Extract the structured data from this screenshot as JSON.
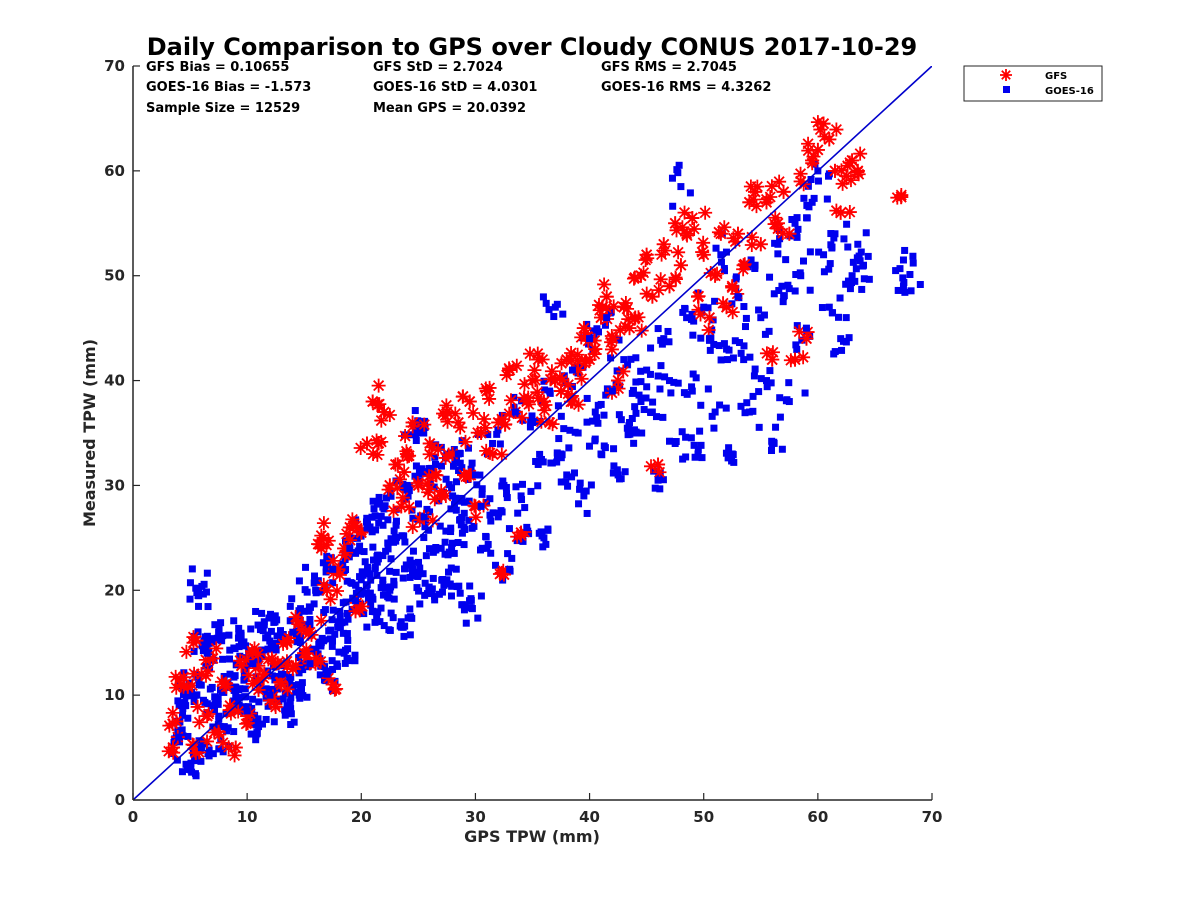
{
  "chart_data": {
    "type": "scatter",
    "title": "Daily Comparison to GPS over Cloudy CONUS 2017-10-29",
    "xlabel": "GPS TPW (mm)",
    "ylabel": "Measured TPW (mm)",
    "xlim": [
      0,
      70
    ],
    "ylim": [
      0,
      70
    ],
    "xticks": [
      "0",
      "10",
      "20",
      "30",
      "40",
      "50",
      "60",
      "70"
    ],
    "yticks": [
      "0",
      "10",
      "20",
      "30",
      "40",
      "50",
      "60",
      "70"
    ],
    "grid": false,
    "legend_position": "outside-top-right",
    "stats": [
      [
        "GFS Bias = 0.10655",
        "GFS StD = 2.7024",
        "GFS RMS = 2.7045"
      ],
      [
        "GOES-16 Bias = -1.573",
        "GOES-16 StD = 4.0301",
        "GOES-16 RMS = 4.3262"
      ],
      [
        "Sample Size = 12529",
        "Mean GPS = 20.0392"
      ]
    ],
    "reference_line": {
      "x": [
        0,
        70
      ],
      "y": [
        0,
        70
      ],
      "color": "#0000cc"
    },
    "series": [
      {
        "name": "GFS",
        "marker": "asterisk",
        "color": "#ff0000",
        "points": [
          [
            3.5,
            5
          ],
          [
            3.8,
            7.5
          ],
          [
            4.2,
            11
          ],
          [
            4.8,
            10.8
          ],
          [
            5.3,
            15
          ],
          [
            5.5,
            4.5
          ],
          [
            6,
            12
          ],
          [
            6.5,
            8
          ],
          [
            7,
            13.5
          ],
          [
            7.5,
            6.5
          ],
          [
            8,
            11
          ],
          [
            8.5,
            9
          ],
          [
            9,
            5
          ],
          [
            9.5,
            12.8
          ],
          [
            10,
            8
          ],
          [
            10.5,
            14
          ],
          [
            11,
            10.5
          ],
          [
            11.5,
            12
          ],
          [
            12,
            9.5
          ],
          [
            12.5,
            13
          ],
          [
            13,
            11
          ],
          [
            13.5,
            15
          ],
          [
            14,
            12.5
          ],
          [
            14.5,
            17
          ],
          [
            15,
            14
          ],
          [
            15.5,
            16
          ],
          [
            16,
            13
          ],
          [
            16.5,
            24
          ],
          [
            16.7,
            25
          ],
          [
            17,
            20
          ],
          [
            17.5,
            11
          ],
          [
            18,
            22
          ],
          [
            18.5,
            24
          ],
          [
            19,
            26
          ],
          [
            19.5,
            18
          ],
          [
            20,
            25.5
          ],
          [
            20.5,
            34
          ],
          [
            21,
            38
          ],
          [
            21.5,
            34
          ],
          [
            22,
            37
          ],
          [
            22.5,
            30
          ],
          [
            23,
            32
          ],
          [
            23.5,
            28
          ],
          [
            24,
            33
          ],
          [
            24.5,
            36
          ],
          [
            25,
            30
          ],
          [
            25.5,
            27
          ],
          [
            26,
            34
          ],
          [
            26.5,
            31
          ],
          [
            27,
            29
          ],
          [
            27.5,
            37
          ],
          [
            28,
            33
          ],
          [
            28.5,
            36
          ],
          [
            29,
            31
          ],
          [
            29.5,
            38
          ],
          [
            30,
            28
          ],
          [
            30.5,
            35
          ],
          [
            31,
            39
          ],
          [
            31.5,
            33
          ],
          [
            32,
            36
          ],
          [
            32.5,
            21.5
          ],
          [
            33,
            41
          ],
          [
            33.5,
            37
          ],
          [
            34,
            25.5
          ],
          [
            34.5,
            38
          ],
          [
            35,
            40
          ],
          [
            35.5,
            42
          ],
          [
            36,
            38
          ],
          [
            36.5,
            36
          ],
          [
            37,
            40
          ],
          [
            37.5,
            39
          ],
          [
            38,
            42
          ],
          [
            38.5,
            38
          ],
          [
            39,
            41
          ],
          [
            39.5,
            45
          ],
          [
            40,
            42
          ],
          [
            40.5,
            43
          ],
          [
            41,
            46
          ],
          [
            41.5,
            48
          ],
          [
            42,
            44
          ],
          [
            42.5,
            40
          ],
          [
            43,
            47
          ],
          [
            43.5,
            45
          ],
          [
            44,
            46
          ],
          [
            44.5,
            50
          ],
          [
            45,
            52
          ],
          [
            45.5,
            48
          ],
          [
            46,
            32
          ],
          [
            46.5,
            53
          ],
          [
            47,
            49
          ],
          [
            47.5,
            55
          ],
          [
            48,
            51
          ],
          [
            48.5,
            54
          ],
          [
            49,
            55.5
          ],
          [
            49.5,
            48
          ],
          [
            50,
            52
          ],
          [
            50.5,
            46
          ],
          [
            51,
            50
          ],
          [
            51.5,
            54
          ],
          [
            52,
            47
          ],
          [
            52.5,
            49
          ],
          [
            53,
            54
          ],
          [
            53.5,
            51
          ],
          [
            54,
            57
          ],
          [
            54.5,
            58
          ],
          [
            55,
            53
          ],
          [
            55.5,
            57
          ],
          [
            56,
            42
          ],
          [
            56.5,
            55
          ],
          [
            57,
            58
          ],
          [
            57.5,
            54
          ],
          [
            58,
            42
          ],
          [
            58.5,
            59
          ],
          [
            59,
            44
          ],
          [
            59.5,
            61
          ],
          [
            60,
            62
          ],
          [
            60.5,
            64.5
          ],
          [
            61,
            63
          ],
          [
            61.5,
            60
          ],
          [
            62,
            56
          ],
          [
            62.5,
            59.5
          ],
          [
            63,
            61
          ],
          [
            63.5,
            60
          ],
          [
            67.3,
            57.5
          ]
        ]
      },
      {
        "name": "GOES-16",
        "marker": "square",
        "color": "#0000ee",
        "points": [
          [
            4,
            6
          ],
          [
            4.5,
            9
          ],
          [
            5,
            3
          ],
          [
            5.5,
            20.2
          ],
          [
            5.8,
            11
          ],
          [
            6,
            5
          ],
          [
            6.5,
            14
          ],
          [
            7,
            9
          ],
          [
            7.5,
            16
          ],
          [
            8,
            7
          ],
          [
            8.5,
            12
          ],
          [
            9,
            10
          ],
          [
            9.5,
            15
          ],
          [
            10,
            8.5
          ],
          [
            10.5,
            13
          ],
          [
            11,
            7
          ],
          [
            11.5,
            17
          ],
          [
            12,
            10
          ],
          [
            12.5,
            14.5
          ],
          [
            13,
            12
          ],
          [
            13.5,
            9
          ],
          [
            14,
            16
          ],
          [
            14.5,
            11
          ],
          [
            15,
            18
          ],
          [
            15.5,
            13
          ],
          [
            16,
            20
          ],
          [
            16.5,
            15
          ],
          [
            17,
            12
          ],
          [
            17.5,
            22
          ],
          [
            18,
            17
          ],
          [
            18.5,
            14
          ],
          [
            19,
            24
          ],
          [
            19.5,
            19
          ],
          [
            20,
            21
          ],
          [
            20.5,
            26
          ],
          [
            21,
            18
          ],
          [
            21.5,
            23
          ],
          [
            22,
            28
          ],
          [
            22.5,
            20
          ],
          [
            23,
            25
          ],
          [
            23.5,
            17
          ],
          [
            24,
            30
          ],
          [
            24.5,
            22
          ],
          [
            25,
            35
          ],
          [
            25.5,
            27
          ],
          [
            26,
            20
          ],
          [
            26.5,
            32
          ],
          [
            27,
            24
          ],
          [
            27.5,
            21
          ],
          [
            28,
            29
          ],
          [
            28.5,
            33
          ],
          [
            29,
            26
          ],
          [
            29.5,
            19
          ],
          [
            30,
            31
          ],
          [
            30.5,
            28
          ],
          [
            31,
            24
          ],
          [
            31.5,
            34
          ],
          [
            32,
            27
          ],
          [
            32.5,
            30
          ],
          [
            33,
            22
          ],
          [
            33.5,
            37
          ],
          [
            34,
            29
          ],
          [
            34.5,
            26
          ],
          [
            35,
            36
          ],
          [
            35.5,
            32
          ],
          [
            36,
            25
          ],
          [
            36.5,
            39
          ],
          [
            37,
            47
          ],
          [
            37.5,
            33
          ],
          [
            38,
            31
          ],
          [
            38.5,
            41
          ],
          [
            39,
            35
          ],
          [
            39.5,
            29
          ],
          [
            40,
            44
          ],
          [
            40.5,
            37
          ],
          [
            41,
            33
          ],
          [
            41.5,
            46
          ],
          [
            42,
            39
          ],
          [
            42.5,
            31
          ],
          [
            43,
            42
          ],
          [
            43.5,
            36
          ],
          [
            44,
            35
          ],
          [
            44.5,
            38
          ],
          [
            45,
            41
          ],
          [
            45.5,
            37
          ],
          [
            46,
            30.5
          ],
          [
            46.5,
            44
          ],
          [
            47,
            40
          ],
          [
            47.5,
            34
          ],
          [
            48,
            58.5
          ],
          [
            48.5,
            46
          ],
          [
            49,
            39
          ],
          [
            49.5,
            33
          ],
          [
            50,
            47
          ],
          [
            50.5,
            44
          ],
          [
            51,
            37
          ],
          [
            51.5,
            52
          ],
          [
            52,
            43
          ],
          [
            52.5,
            33
          ],
          [
            53,
            48
          ],
          [
            53.5,
            42
          ],
          [
            54,
            37
          ],
          [
            54.5,
            51
          ],
          [
            55,
            46
          ],
          [
            55.5,
            40
          ],
          [
            56,
            34
          ],
          [
            56.5,
            53
          ],
          [
            57,
            48
          ],
          [
            57.5,
            38
          ],
          [
            58,
            55
          ],
          [
            58.5,
            50
          ],
          [
            59,
            45
          ],
          [
            59.5,
            57
          ],
          [
            60,
            60
          ],
          [
            60.5,
            52
          ],
          [
            61,
            47
          ],
          [
            61.5,
            54
          ],
          [
            62,
            44
          ],
          [
            63,
            50
          ],
          [
            63.5,
            53
          ],
          [
            64,
            51
          ],
          [
            67.5,
            51.5
          ],
          [
            67.5,
            49
          ]
        ]
      }
    ]
  }
}
